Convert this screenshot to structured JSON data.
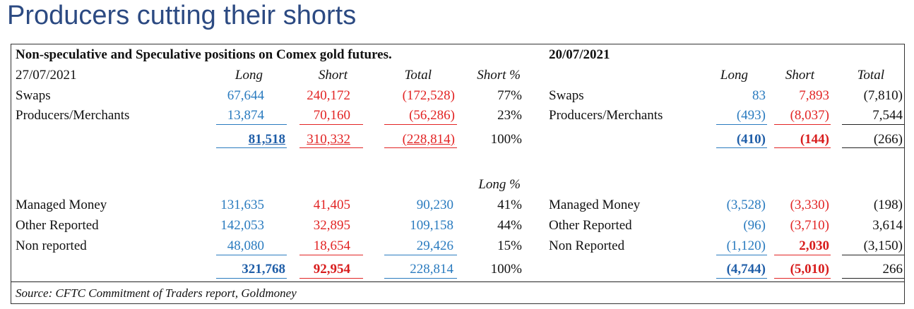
{
  "title": "Producers cutting their shorts",
  "table": {
    "heading_left": "Non-speculative and Speculative positions on Comex gold futures.",
    "heading_right": "20/07/2021",
    "date_left": "27/07/2021",
    "col_long": "Long",
    "col_short": "Short",
    "col_total": "Total",
    "col_short_pct": "Short %",
    "col_long_pct": "Long %",
    "commercial_rows": [
      {
        "label": "Swaps",
        "long": "67,644",
        "short": "240,172",
        "total": "(172,528)",
        "pct": "77%",
        "r_label": "Swaps",
        "r_long": "83",
        "r_short": "7,893",
        "r_total": "(7,810)"
      },
      {
        "label": "Producers/Merchants",
        "long": "13,874",
        "short": "70,160",
        "total": "(56,286)",
        "pct": "23%",
        "r_label": "Producers/Merchants",
        "r_long": "(493)",
        "r_short": "(8,037)",
        "r_total": "7,544"
      }
    ],
    "commercial_totals": {
      "long": "81,518",
      "short": "310,332",
      "total": "(228,814)",
      "pct": "100%",
      "r_long": "(410)",
      "r_short": "(144)",
      "r_total": "(266)"
    },
    "spec_rows": [
      {
        "label": "Managed Money",
        "long": "131,635",
        "short": "41,405",
        "total": "90,230",
        "pct": "41%",
        "r_label": "Managed Money",
        "r_long": "(3,528)",
        "r_short": "(3,330)",
        "r_total": "(198)"
      },
      {
        "label": "Other Reported",
        "long": "142,053",
        "short": "32,895",
        "total": "109,158",
        "pct": "44%",
        "r_label": "Other Reported",
        "r_long": "(96)",
        "r_short": "(3,710)",
        "r_total": "3,614"
      },
      {
        "label": "Non reported",
        "long": "48,080",
        "short": "18,654",
        "total": "29,426",
        "pct": "15%",
        "r_label": "Non Reported",
        "r_long": "(1,120)",
        "r_short": "2,030",
        "r_total": "(3,150)"
      }
    ],
    "spec_totals": {
      "long": "321,768",
      "short": "92,954",
      "total": "228,814",
      "pct": "100%",
      "r_long": "(4,744)",
      "r_short": "(5,010)",
      "r_total": "266"
    },
    "source": "Source: CFTC Commitment of Traders report, Goldmoney"
  },
  "colors": {
    "title": "#2c4a82",
    "long": "#2a7bbf",
    "short": "#e22424"
  }
}
